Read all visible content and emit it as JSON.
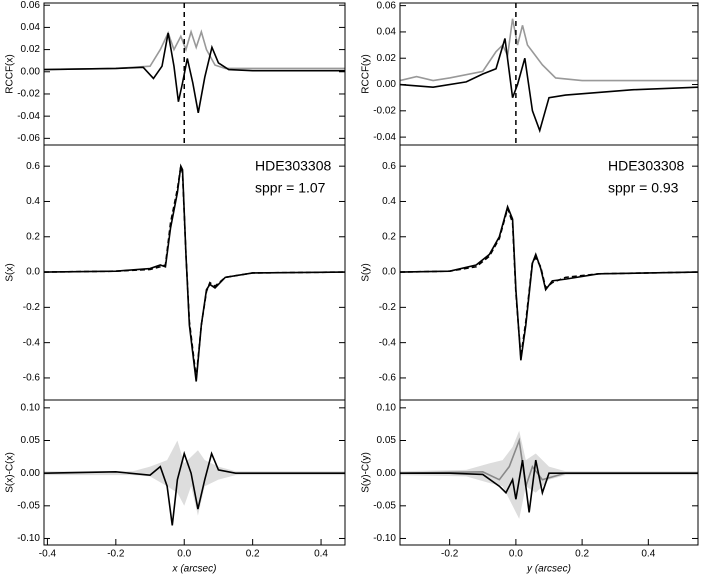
{
  "chart_data": [
    {
      "type": "line",
      "ylabel": "RCCF(x)",
      "xlim": [
        -0.41,
        0.47
      ],
      "ylim": [
        -0.066,
        0.062
      ],
      "yticks": [
        0.06,
        0.04,
        0.02,
        {
          "value": 0,
          "label": "0.00"
        },
        -0.02,
        -0.04,
        -0.06
      ],
      "vline": 0,
      "series": [
        {
          "color": "#999999",
          "x": [
            -0.41,
            -0.2,
            -0.1,
            -0.07,
            -0.047,
            -0.03,
            -0.01,
            0.005,
            0.02,
            0.035,
            0.05,
            0.065,
            0.09,
            0.12,
            0.47
          ],
          "values": [
            0.002,
            0.003,
            0.005,
            0.02,
            0.035,
            0.02,
            0.032,
            0.02,
            0.036,
            0.022,
            0.036,
            0.02,
            0.006,
            0.003,
            0.003
          ]
        },
        {
          "color": "#000000",
          "x": [
            -0.41,
            -0.2,
            -0.12,
            -0.09,
            -0.065,
            -0.047,
            -0.03,
            -0.017,
            -0.005,
            0.009,
            0.025,
            0.041,
            0.06,
            0.081,
            0.1,
            0.13,
            0.2,
            0.47
          ],
          "values": [
            0.002,
            0.003,
            0.004,
            -0.006,
            0.005,
            0.035,
            0.005,
            -0.027,
            -0.01,
            0.012,
            -0.01,
            -0.037,
            -0.005,
            0.022,
            0.008,
            0.002,
            0.001,
            0.001
          ]
        }
      ]
    },
    {
      "type": "line",
      "ylabel": "S(x)",
      "xlim": [
        -0.41,
        0.47
      ],
      "ylim": [
        -0.725,
        0.72
      ],
      "yticks": [
        0.6,
        0.4,
        0.2,
        {
          "value": 0,
          "label": "0.0"
        },
        -0.2,
        -0.4,
        -0.6
      ],
      "annotations": [
        "HDE303308",
        "sppr = 1.07"
      ],
      "series": [
        {
          "color": "#000000",
          "dash": true,
          "x": [
            -0.41,
            -0.2,
            -0.1,
            -0.07,
            -0.055,
            -0.04,
            -0.02,
            -0.01,
            -0.005,
            0.005,
            0.015,
            0.035,
            0.05,
            0.065,
            0.075,
            0.09,
            0.12,
            0.2,
            0.47
          ],
          "values": [
            0,
            0.005,
            0.015,
            0.03,
            0.04,
            0.28,
            0.47,
            0.6,
            0.56,
            0.1,
            -0.28,
            -0.6,
            -0.3,
            -0.11,
            -0.06,
            -0.08,
            -0.03,
            -0.005,
            0
          ]
        },
        {
          "color": "#000000",
          "x": [
            -0.41,
            -0.2,
            -0.1,
            -0.07,
            -0.055,
            -0.04,
            -0.02,
            -0.01,
            -0.005,
            0.005,
            0.015,
            0.035,
            0.05,
            0.065,
            0.075,
            0.09,
            0.12,
            0.2,
            0.47
          ],
          "values": [
            0,
            0.005,
            0.02,
            0.04,
            0.03,
            0.25,
            0.45,
            0.6,
            0.58,
            0.1,
            -0.3,
            -0.62,
            -0.3,
            -0.1,
            -0.07,
            -0.09,
            -0.03,
            -0.005,
            0
          ]
        }
      ]
    },
    {
      "type": "line",
      "ylabel": "S(x)-C(x)",
      "xlabel": "x (arcsec)",
      "xlim": [
        -0.41,
        0.47
      ],
      "ylim": [
        -0.11,
        0.112
      ],
      "yticks": [
        {
          "value": 0.1,
          "label": "0.10"
        },
        0.05,
        {
          "value": 0,
          "label": "0.00"
        },
        -0.05,
        {
          "value": -0.1,
          "label": "-0.10"
        }
      ],
      "xticks": [
        -0.4,
        -0.2,
        {
          "value": 0,
          "label": "0.0"
        },
        0.2,
        0.4
      ],
      "series": [
        {
          "color": "#dddddd",
          "x": [
            -0.41,
            -0.15,
            -0.1,
            -0.05,
            -0.02,
            0,
            0.02,
            0.04,
            0.06,
            0.1,
            0.15,
            0.47
          ],
          "values": [
            0.003,
            0.003,
            0.01,
            0.02,
            0.05,
            0.015,
            0.025,
            0.035,
            0.02,
            0.01,
            0.003,
            0.003
          ],
          "lower": [
            -0.003,
            -0.003,
            -0.005,
            -0.02,
            -0.03,
            -0.05,
            -0.02,
            -0.065,
            -0.02,
            -0.01,
            -0.003,
            -0.003
          ]
        },
        {
          "color": "#000000",
          "x": [
            -0.41,
            -0.2,
            -0.1,
            -0.07,
            -0.05,
            -0.035,
            -0.02,
            0,
            0.02,
            0.04,
            0.06,
            0.08,
            0.1,
            0.15,
            0.47
          ],
          "values": [
            0,
            0.002,
            -0.003,
            0.01,
            -0.02,
            -0.08,
            -0.01,
            0.03,
            0,
            -0.055,
            -0.01,
            0.03,
            0.005,
            0,
            0
          ]
        }
      ]
    },
    {
      "type": "line",
      "ylabel": "RCCF(y)",
      "xlim": [
        -0.35,
        0.55
      ],
      "ylim": [
        -0.046,
        0.062
      ],
      "yticks": [
        0.06,
        0.04,
        0.02,
        {
          "value": 0,
          "label": "0.00"
        },
        -0.02,
        -0.04
      ],
      "vline": 0,
      "series": [
        {
          "color": "#999999",
          "x": [
            -0.35,
            -0.3,
            -0.25,
            -0.2,
            -0.1,
            -0.06,
            -0.04,
            -0.025,
            -0.01,
            0.005,
            0.02,
            0.035,
            0.05,
            0.08,
            0.12,
            0.2,
            0.55
          ],
          "values": [
            0.003,
            0.006,
            0.003,
            0.005,
            0.01,
            0.025,
            0.03,
            0.022,
            0.05,
            0.03,
            0.045,
            0.03,
            0.025,
            0.015,
            0.005,
            0.003,
            0.003
          ]
        },
        {
          "color": "#000000",
          "x": [
            -0.35,
            -0.25,
            -0.15,
            -0.1,
            -0.06,
            -0.033,
            -0.01,
            0.005,
            0.027,
            0.05,
            0.072,
            0.1,
            0.15,
            0.25,
            0.35,
            0.55
          ],
          "values": [
            0,
            -0.002,
            0.002,
            0.008,
            0.012,
            0.035,
            -0.01,
            0,
            0.02,
            -0.02,
            -0.035,
            -0.01,
            -0.008,
            -0.006,
            -0.004,
            -0.002
          ]
        }
      ]
    },
    {
      "type": "line",
      "ylabel": "S(y)",
      "xlim": [
        -0.35,
        0.55
      ],
      "ylim": [
        -0.725,
        0.72
      ],
      "yticks": [
        0.6,
        0.4,
        0.2,
        {
          "value": 0,
          "label": "0.0"
        },
        -0.2,
        -0.4,
        -0.6
      ],
      "annotations": [
        "HDE303308",
        "sppr = 0.93"
      ],
      "series": [
        {
          "color": "#000000",
          "dash": true,
          "x": [
            -0.35,
            -0.2,
            -0.12,
            -0.08,
            -0.05,
            -0.025,
            -0.01,
            0,
            0.015,
            0.03,
            0.05,
            0.06,
            0.075,
            0.09,
            0.11,
            0.15,
            0.25,
            0.55
          ],
          "values": [
            0,
            0.005,
            0.03,
            0.09,
            0.19,
            0.36,
            0.28,
            -0.12,
            -0.48,
            -0.28,
            0.06,
            0.08,
            0.03,
            -0.09,
            -0.06,
            -0.03,
            -0.01,
            0
          ]
        },
        {
          "color": "#000000",
          "x": [
            -0.35,
            -0.2,
            -0.12,
            -0.08,
            -0.05,
            -0.025,
            -0.01,
            0,
            0.015,
            0.03,
            0.05,
            0.06,
            0.075,
            0.09,
            0.11,
            0.15,
            0.25,
            0.55
          ],
          "values": [
            0,
            0.005,
            0.04,
            0.1,
            0.2,
            0.37,
            0.3,
            -0.1,
            -0.5,
            -0.3,
            0.05,
            0.1,
            0.02,
            -0.1,
            -0.05,
            -0.04,
            -0.01,
            0
          ]
        }
      ]
    },
    {
      "type": "line",
      "ylabel": "S(y)-C(y)",
      "xlabel": "y (arcsec)",
      "xlim": [
        -0.35,
        0.55
      ],
      "ylim": [
        -0.11,
        0.112
      ],
      "yticks": [
        {
          "value": 0.1,
          "label": "0.10"
        },
        0.05,
        {
          "value": 0,
          "label": "0.00"
        },
        -0.05,
        {
          "value": -0.1,
          "label": "-0.10"
        }
      ],
      "xticks": [
        -0.2,
        {
          "value": 0,
          "label": "0.0"
        },
        0.2,
        0.4
      ],
      "series": [
        {
          "color": "#dddddd",
          "x": [
            -0.35,
            -0.15,
            -0.08,
            -0.04,
            -0.01,
            0.01,
            0.03,
            0.06,
            0.1,
            0.15,
            0.55
          ],
          "values": [
            0.003,
            0.005,
            0.015,
            0.02,
            0.04,
            0.065,
            0.02,
            0.03,
            0.01,
            0.003,
            0.003
          ],
          "lower": [
            -0.003,
            -0.005,
            -0.015,
            -0.02,
            -0.05,
            -0.07,
            -0.02,
            -0.03,
            -0.01,
            -0.003,
            -0.003
          ]
        },
        {
          "color": "#888888",
          "x": [
            -0.35,
            -0.1,
            -0.05,
            -0.02,
            0.01,
            0.03,
            0.05,
            0.08,
            0.15,
            0.55
          ],
          "values": [
            0,
            0.002,
            -0.01,
            0.01,
            0.05,
            -0.02,
            0.01,
            -0.01,
            0,
            0
          ]
        },
        {
          "color": "#000000",
          "x": [
            -0.35,
            -0.2,
            -0.1,
            -0.05,
            -0.03,
            -0.01,
            0,
            0.02,
            0.04,
            0.06,
            0.08,
            0.1,
            0.15,
            0.55
          ],
          "values": [
            0,
            0,
            -0.002,
            -0.02,
            -0.03,
            -0.01,
            -0.04,
            0.02,
            -0.06,
            0.02,
            -0.03,
            0,
            0,
            0
          ]
        }
      ]
    }
  ]
}
